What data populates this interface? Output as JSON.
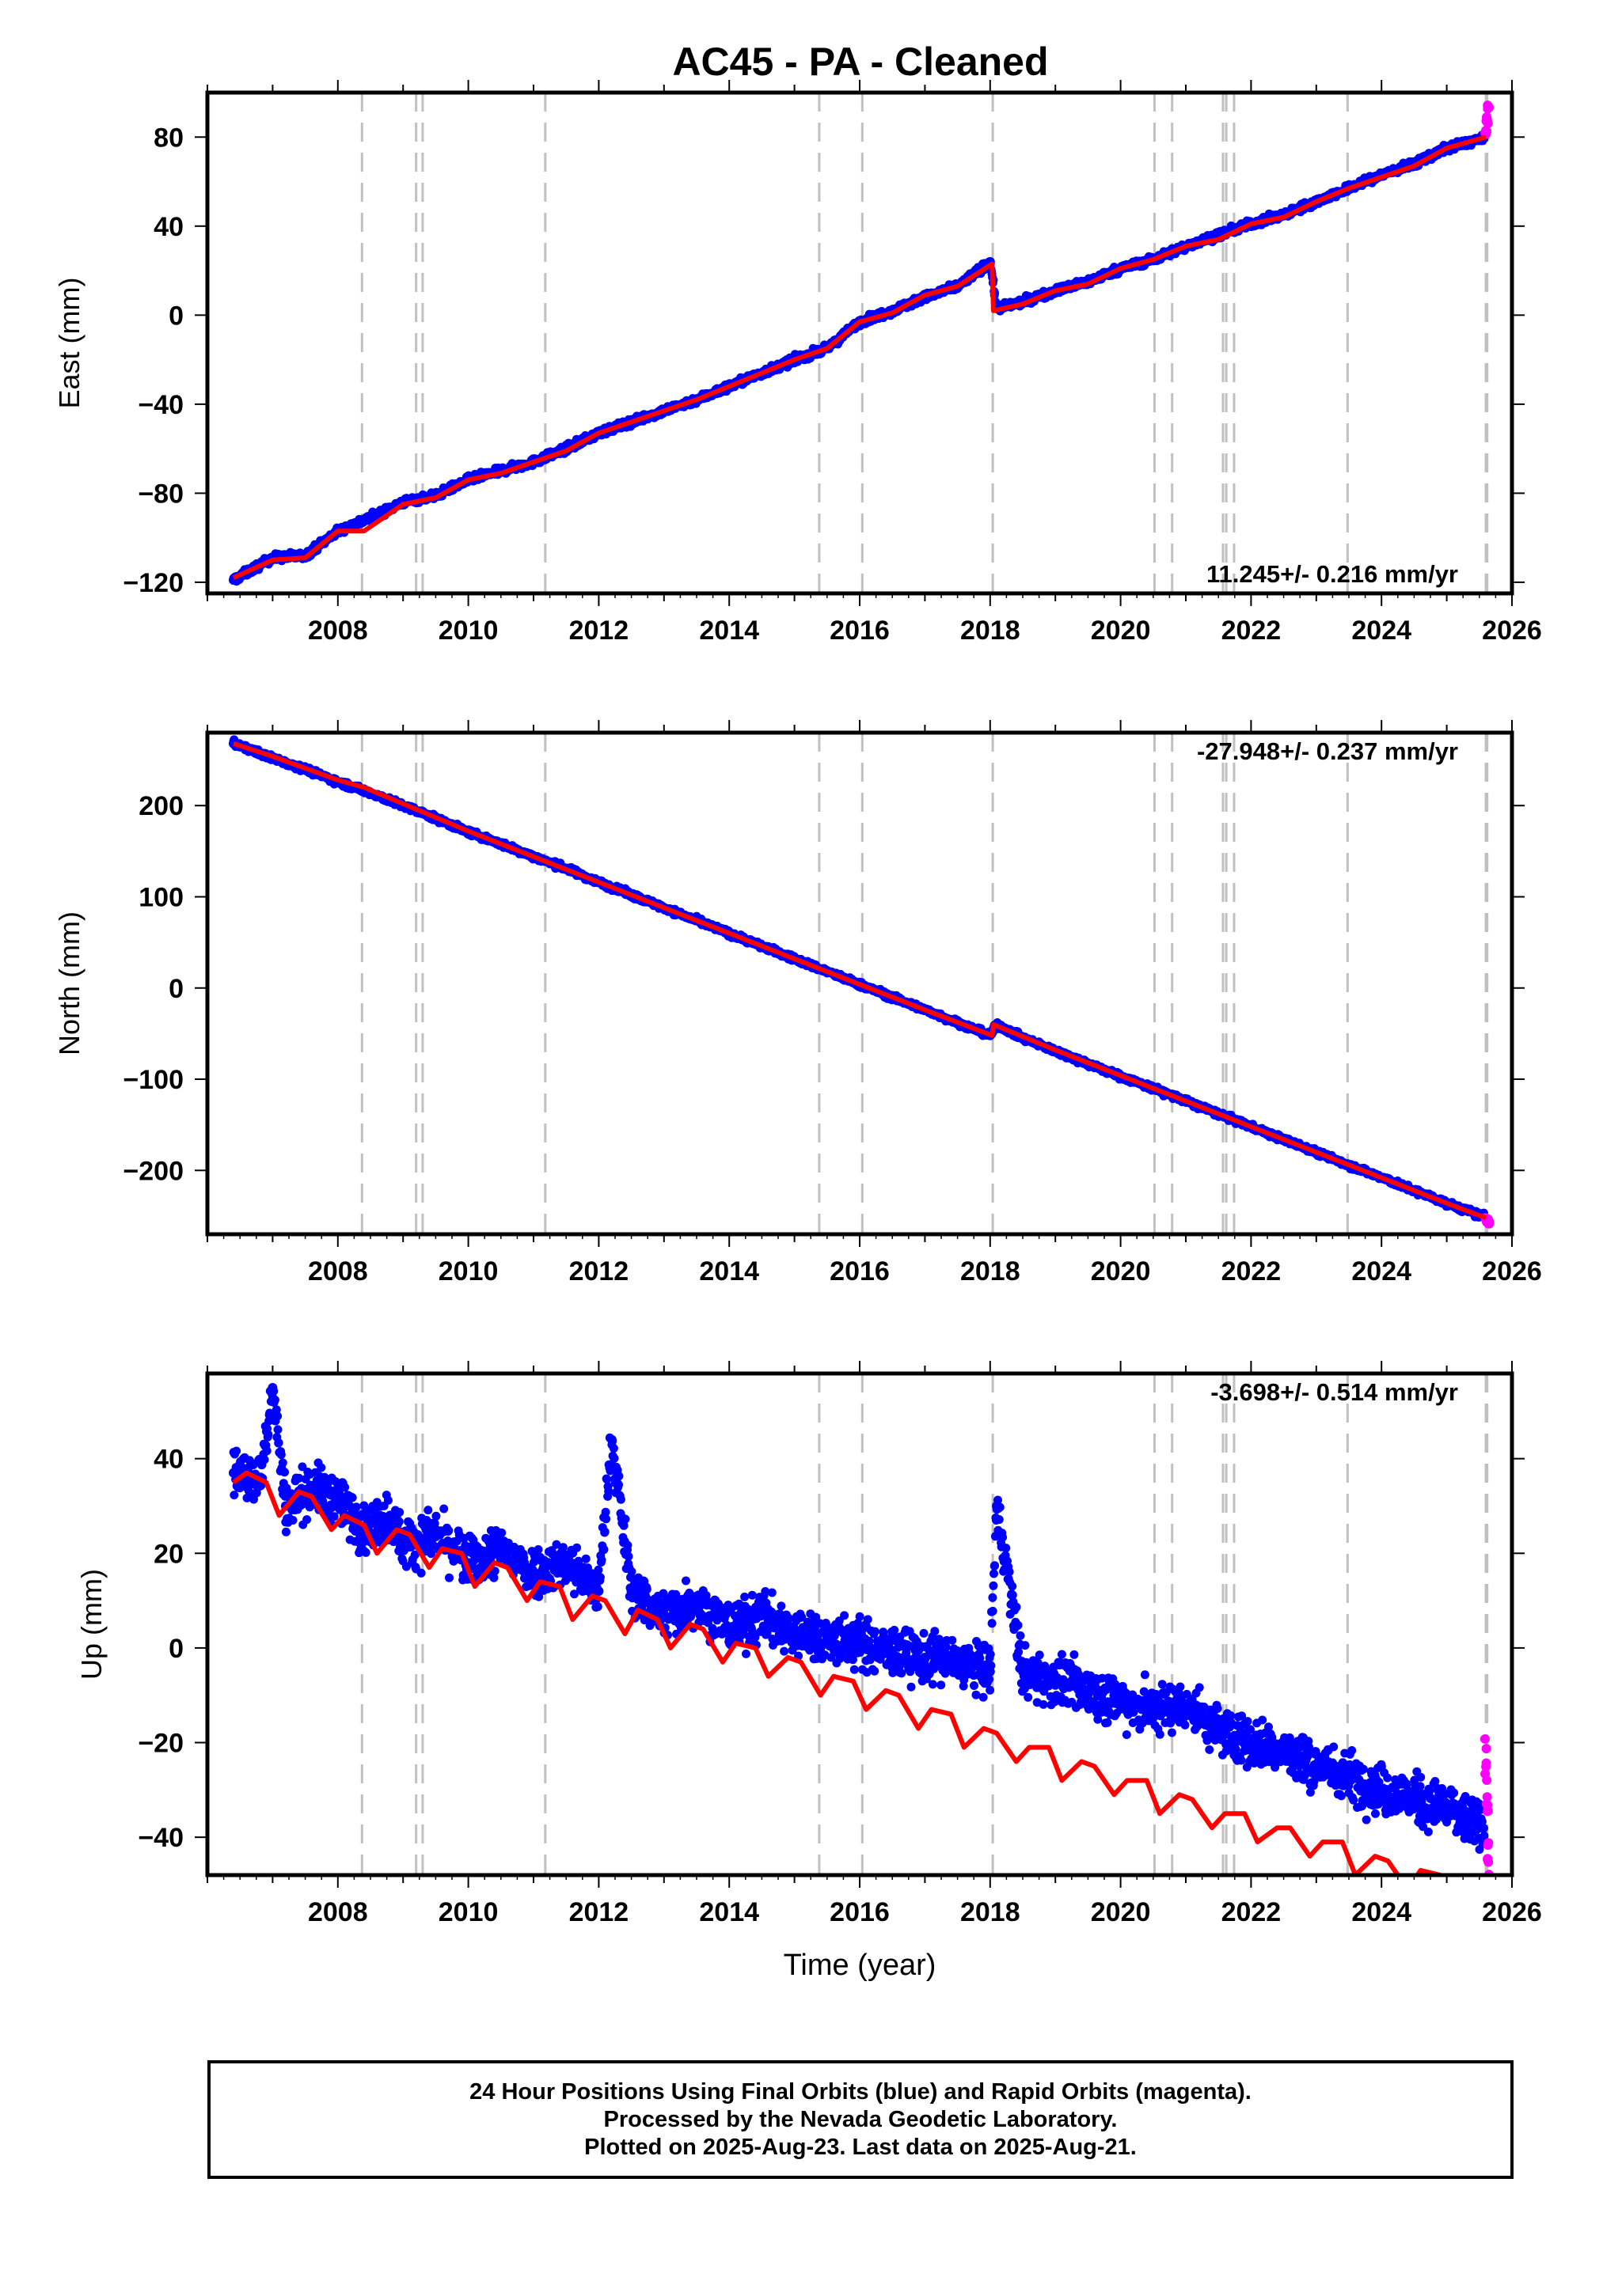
{
  "title": "AC45  - PA - Cleaned",
  "footer": {
    "line1": "24 Hour Positions Using Final Orbits (blue) and Rapid Orbits (magenta).",
    "line2": "Processed by the Nevada Geodetic Laboratory.",
    "line3": "Plotted on 2025-Aug-23. Last data on 2025-Aug-21."
  },
  "colors": {
    "final": "#0000ff",
    "rapid": "#ff00ff",
    "model": "#ff0000",
    "steps": "#c0c0c0"
  },
  "chart_data": [
    {
      "type": "scatter",
      "ylabel": "East (mm)",
      "xlabel": "",
      "xlim": [
        2006.0,
        2026.0
      ],
      "ylim": [
        -125,
        100
      ],
      "yticks": [
        -120,
        -80,
        -40,
        0,
        40,
        80
      ],
      "xticks": [
        2008,
        2010,
        2012,
        2014,
        2016,
        2018,
        2020,
        2022,
        2024,
        2026
      ],
      "rate_label": "11.245+/- 0.216 mm/yr",
      "rate_label_pos": "bottom-right",
      "rate": 11.245,
      "first_epoch": 2006.4,
      "last_epoch": 2025.64,
      "step_epochs": [
        2008.37,
        2009.2,
        2009.3,
        2011.18,
        2015.38,
        2016.04,
        2018.04,
        2020.52,
        2020.79,
        2021.57,
        2021.62,
        2021.74,
        2023.48,
        2025.6,
        2025.62
      ],
      "series": [
        {
          "name": "Final Orbits",
          "color": "#0000ff",
          "x": [
            2006.4,
            2007.0,
            2007.5,
            2008.0,
            2008.5,
            2009.0,
            2009.5,
            2010.0,
            2010.5,
            2011.0,
            2011.5,
            2012.0,
            2012.5,
            2013.0,
            2013.5,
            2014.0,
            2014.5,
            2015.0,
            2015.5,
            2016.0,
            2016.5,
            2017.0,
            2017.5,
            2018.0,
            2018.1,
            2018.5,
            2019.0,
            2019.5,
            2020.0,
            2020.5,
            2021.0,
            2021.5,
            2022.0,
            2022.5,
            2023.0,
            2023.5,
            2024.0,
            2024.5,
            2025.0,
            2025.5
          ],
          "y": [
            -119,
            -109,
            -108,
            -97,
            -91,
            -84,
            -81,
            -74,
            -70,
            -66,
            -60,
            -53,
            -48,
            -43,
            -38,
            -32,
            -26,
            -20,
            -15,
            -3,
            2,
            8,
            13,
            24,
            3,
            6,
            11,
            15,
            21,
            25,
            31,
            36,
            41,
            45,
            51,
            57,
            63,
            68,
            75,
            79
          ]
        },
        {
          "name": "Rapid Orbits",
          "color": "#ff00ff",
          "x": [
            2025.6,
            2025.62,
            2025.64
          ],
          "y": [
            82,
            88,
            93
          ]
        },
        {
          "name": "Model",
          "color": "#ff0000",
          "x": [
            2006.4,
            2007.0,
            2007.5,
            2008.0,
            2008.4,
            2009.0,
            2009.5,
            2010.0,
            2010.5,
            2011.0,
            2011.5,
            2012.0,
            2012.5,
            2013.0,
            2013.5,
            2014.0,
            2014.5,
            2015.0,
            2015.5,
            2016.0,
            2016.5,
            2017.0,
            2017.5,
            2018.03,
            2018.05,
            2018.5,
            2019.0,
            2019.5,
            2020.0,
            2020.5,
            2021.0,
            2021.5,
            2022.0,
            2022.5,
            2023.0,
            2023.5,
            2024.0,
            2024.5,
            2025.0,
            2025.6
          ],
          "y": [
            -118,
            -110,
            -109,
            -97,
            -97,
            -85,
            -82,
            -74,
            -71,
            -66,
            -61,
            -53,
            -48,
            -43,
            -38,
            -32,
            -26,
            -20,
            -15,
            -3,
            1,
            9,
            13,
            23,
            2,
            5,
            11,
            14,
            21,
            25,
            31,
            34,
            41,
            44,
            51,
            57,
            62,
            67,
            75,
            80
          ]
        }
      ]
    },
    {
      "type": "scatter",
      "ylabel": "North (mm)",
      "xlabel": "",
      "xlim": [
        2006.0,
        2026.0
      ],
      "ylim": [
        -270,
        280
      ],
      "yticks": [
        -200,
        -100,
        0,
        100,
        200
      ],
      "xticks": [
        2008,
        2010,
        2012,
        2014,
        2016,
        2018,
        2020,
        2022,
        2024,
        2026
      ],
      "rate_label": "-27.948+/- 0.237 mm/yr",
      "rate_label_pos": "top-right",
      "rate": -27.948,
      "first_epoch": 2006.4,
      "last_epoch": 2025.64,
      "step_epochs": [
        2008.37,
        2009.2,
        2009.3,
        2011.18,
        2015.38,
        2016.04,
        2018.04,
        2020.52,
        2020.79,
        2021.57,
        2021.62,
        2021.74,
        2023.48,
        2025.6,
        2025.62
      ],
      "series": [
        {
          "name": "Final Orbits",
          "color": "#0000ff",
          "x": [
            2006.4,
            2007.0,
            2007.5,
            2008.0,
            2008.5,
            2009.0,
            2009.5,
            2010.0,
            2010.5,
            2011.0,
            2011.5,
            2012.0,
            2012.5,
            2013.0,
            2013.5,
            2014.0,
            2014.5,
            2015.0,
            2015.5,
            2016.0,
            2016.5,
            2017.0,
            2017.5,
            2018.0,
            2018.1,
            2018.5,
            2019.0,
            2019.5,
            2020.0,
            2020.5,
            2021.0,
            2021.5,
            2022.0,
            2022.5,
            2023.0,
            2023.5,
            2024.0,
            2024.5,
            2025.0,
            2025.5
          ],
          "y": [
            268,
            252,
            240,
            226,
            214,
            200,
            186,
            171,
            158,
            144,
            131,
            116,
            102,
            88,
            74,
            60,
            46,
            32,
            18,
            4,
            -10,
            -24,
            -38,
            -52,
            -40,
            -55,
            -69,
            -83,
            -97,
            -110,
            -124,
            -138,
            -152,
            -166,
            -180,
            -194,
            -208,
            -222,
            -236,
            -249
          ]
        },
        {
          "name": "Rapid Orbits",
          "color": "#ff00ff",
          "x": [
            2025.6,
            2025.62,
            2025.64
          ],
          "y": [
            -252,
            -254,
            -256
          ]
        },
        {
          "name": "Model",
          "color": "#ff0000",
          "x": [
            2006.4,
            2007.0,
            2008.0,
            2008.4,
            2009.0,
            2010.0,
            2011.0,
            2012.0,
            2013.0,
            2014.0,
            2015.0,
            2016.0,
            2017.0,
            2018.03,
            2018.05,
            2019.0,
            2020.0,
            2021.0,
            2022.0,
            2023.0,
            2024.0,
            2025.0,
            2025.6
          ],
          "y": [
            268,
            254,
            228,
            220,
            202,
            172,
            144,
            116,
            88,
            60,
            32,
            4,
            -24,
            -52,
            -40,
            -68,
            -96,
            -124,
            -152,
            -180,
            -208,
            -236,
            -252
          ]
        }
      ]
    },
    {
      "type": "scatter",
      "ylabel": "Up (mm)",
      "xlabel": "Time (year)",
      "xlim": [
        2006.0,
        2026.0
      ],
      "ylim": [
        -48,
        58
      ],
      "yticks": [
        -40,
        -20,
        0,
        20,
        40
      ],
      "xticks": [
        2008,
        2010,
        2012,
        2014,
        2016,
        2018,
        2020,
        2022,
        2024,
        2026
      ],
      "rate_label": "-3.698+/- 0.514 mm/yr",
      "rate_label_pos": "top-right",
      "rate": -3.698,
      "first_epoch": 2006.4,
      "last_epoch": 2025.64,
      "step_epochs": [
        2008.37,
        2009.2,
        2009.3,
        2011.18,
        2015.38,
        2016.04,
        2018.04,
        2020.52,
        2020.79,
        2021.57,
        2021.62,
        2021.74,
        2023.48,
        2025.6,
        2025.62
      ],
      "series": [
        {
          "name": "Final Orbits",
          "color": "#0000ff",
          "x": [
            2006.4,
            2006.8,
            2007.0,
            2007.2,
            2007.6,
            2008.0,
            2008.4,
            2008.8,
            2009.0,
            2009.5,
            2010.0,
            2010.5,
            2011.0,
            2011.5,
            2012.0,
            2012.2,
            2012.5,
            2013.0,
            2013.5,
            2014.0,
            2014.5,
            2015.0,
            2015.5,
            2016.0,
            2016.5,
            2017.0,
            2017.5,
            2018.0,
            2018.1,
            2018.5,
            2019.0,
            2019.5,
            2020.0,
            2020.5,
            2021.0,
            2021.5,
            2022.0,
            2022.5,
            2023.0,
            2023.5,
            2024.0,
            2024.5,
            2025.0,
            2025.5
          ],
          "y": [
            37,
            35,
            55,
            30,
            34,
            31,
            25,
            28,
            22,
            24,
            18,
            21,
            16,
            18,
            12,
            44,
            12,
            7,
            10,
            4,
            7,
            3,
            2,
            1,
            -1,
            -2,
            -3,
            -5,
            30,
            -5,
            -7,
            -9,
            -11,
            -13,
            -12,
            -17,
            -20,
            -22,
            -25,
            -27,
            -30,
            -32,
            -34,
            -38
          ]
        },
        {
          "name": "Rapid Orbits",
          "color": "#ff00ff",
          "x": [
            2025.6,
            2025.62,
            2025.64
          ],
          "y": [
            -24,
            -32,
            -44
          ]
        },
        {
          "name": "Model",
          "color": "#ff0000",
          "x": [
            2006.4,
            2006.6,
            2006.9,
            2007.1,
            2007.4,
            2007.6,
            2007.9,
            2008.1,
            2008.4,
            2008.6,
            2008.9,
            2009.1,
            2009.4,
            2009.6,
            2009.9,
            2010.1,
            2010.4,
            2010.6,
            2010.9,
            2011.1,
            2011.4,
            2011.6,
            2011.9,
            2012.1,
            2012.4,
            2012.6,
            2012.9,
            2013.1,
            2013.4,
            2013.6,
            2013.9,
            2014.1,
            2014.4,
            2014.6,
            2014.9,
            2015.1,
            2015.4,
            2015.6,
            2015.9,
            2016.1,
            2016.4,
            2016.6,
            2016.9,
            2017.1,
            2017.4,
            2017.6,
            2017.9,
            2018.1,
            2018.4,
            2018.6,
            2018.9,
            2019.1,
            2019.4,
            2019.6,
            2019.9,
            2020.1,
            2020.4,
            2020.6,
            2020.9,
            2021.1,
            2021.4,
            2021.6,
            2021.9,
            2022.1,
            2022.4,
            2022.6,
            2022.9,
            2023.1,
            2023.4,
            2023.6,
            2023.9,
            2024.1,
            2024.4,
            2024.6,
            2024.9,
            2025.1,
            2025.4,
            2025.6
          ],
          "y": [
            35,
            37,
            35,
            28,
            33,
            32,
            25,
            28,
            26,
            20,
            25,
            24,
            17,
            21,
            20,
            13,
            18,
            17,
            10,
            14,
            13,
            6,
            11,
            10,
            3,
            8,
            6,
            0,
            5,
            4,
            -3,
            1,
            0,
            -6,
            -2,
            -3,
            -10,
            -6,
            -7,
            -13,
            -9,
            -10,
            -17,
            -13,
            -14,
            -21,
            -17,
            -18,
            -24,
            -21,
            -21,
            -28,
            -24,
            -25,
            -31,
            -28,
            -28,
            -35,
            -31,
            -32,
            -38,
            -35,
            -35,
            -41,
            -38,
            -38,
            -44,
            -41,
            -41,
            -48,
            -44,
            -45,
            -51,
            -47,
            -48,
            -54,
            -50,
            -51
          ]
        }
      ]
    }
  ]
}
